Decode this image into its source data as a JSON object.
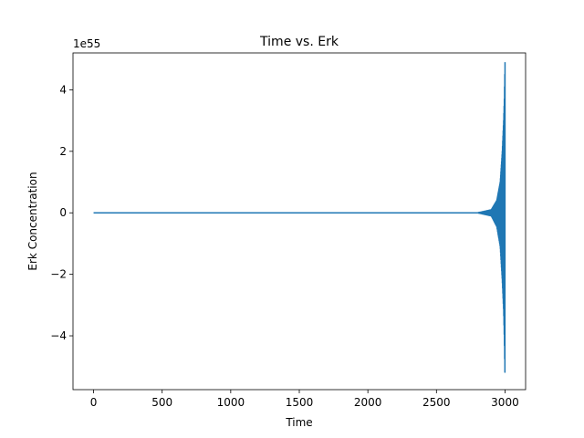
{
  "chart_data": {
    "type": "line",
    "title": "Time vs. Erk",
    "xlabel": "Time",
    "ylabel": "Erk Concentration",
    "y_scale_label": "1e55",
    "xlim": [
      -150,
      3150
    ],
    "ylim": [
      -5.75,
      5.2
    ],
    "x_ticks": [
      0,
      500,
      1000,
      1500,
      2000,
      2500,
      3000
    ],
    "x_tick_labels": [
      "0",
      "500",
      "1000",
      "1500",
      "2000",
      "2500",
      "3000"
    ],
    "y_ticks": [
      -4,
      -2,
      0,
      2,
      4
    ],
    "y_tick_labels": [
      "−4",
      "−2",
      "0",
      "2",
      "4"
    ],
    "grid": false,
    "series": [
      {
        "color": "#1f77b4",
        "flat": {
          "x_start": 0,
          "x_end": 2800,
          "y": 0
        },
        "oscillation": {
          "x_start": 2800,
          "x_end": 3000,
          "envelope": [
            {
              "x": 2800,
              "upper": 0.0,
              "lower": 0.0
            },
            {
              "x": 2900,
              "upper": 0.1,
              "lower": -0.1
            },
            {
              "x": 2940,
              "upper": 0.4,
              "lower": -0.45
            },
            {
              "x": 2965,
              "upper": 1.0,
              "lower": -1.1
            },
            {
              "x": 2980,
              "upper": 2.0,
              "lower": -2.2
            },
            {
              "x": 2990,
              "upper": 3.0,
              "lower": -3.2
            },
            {
              "x": 2995,
              "upper": 3.7,
              "lower": -4.1
            },
            {
              "x": 3000,
              "upper": 4.9,
              "lower": -5.4
            }
          ]
        }
      }
    ]
  }
}
